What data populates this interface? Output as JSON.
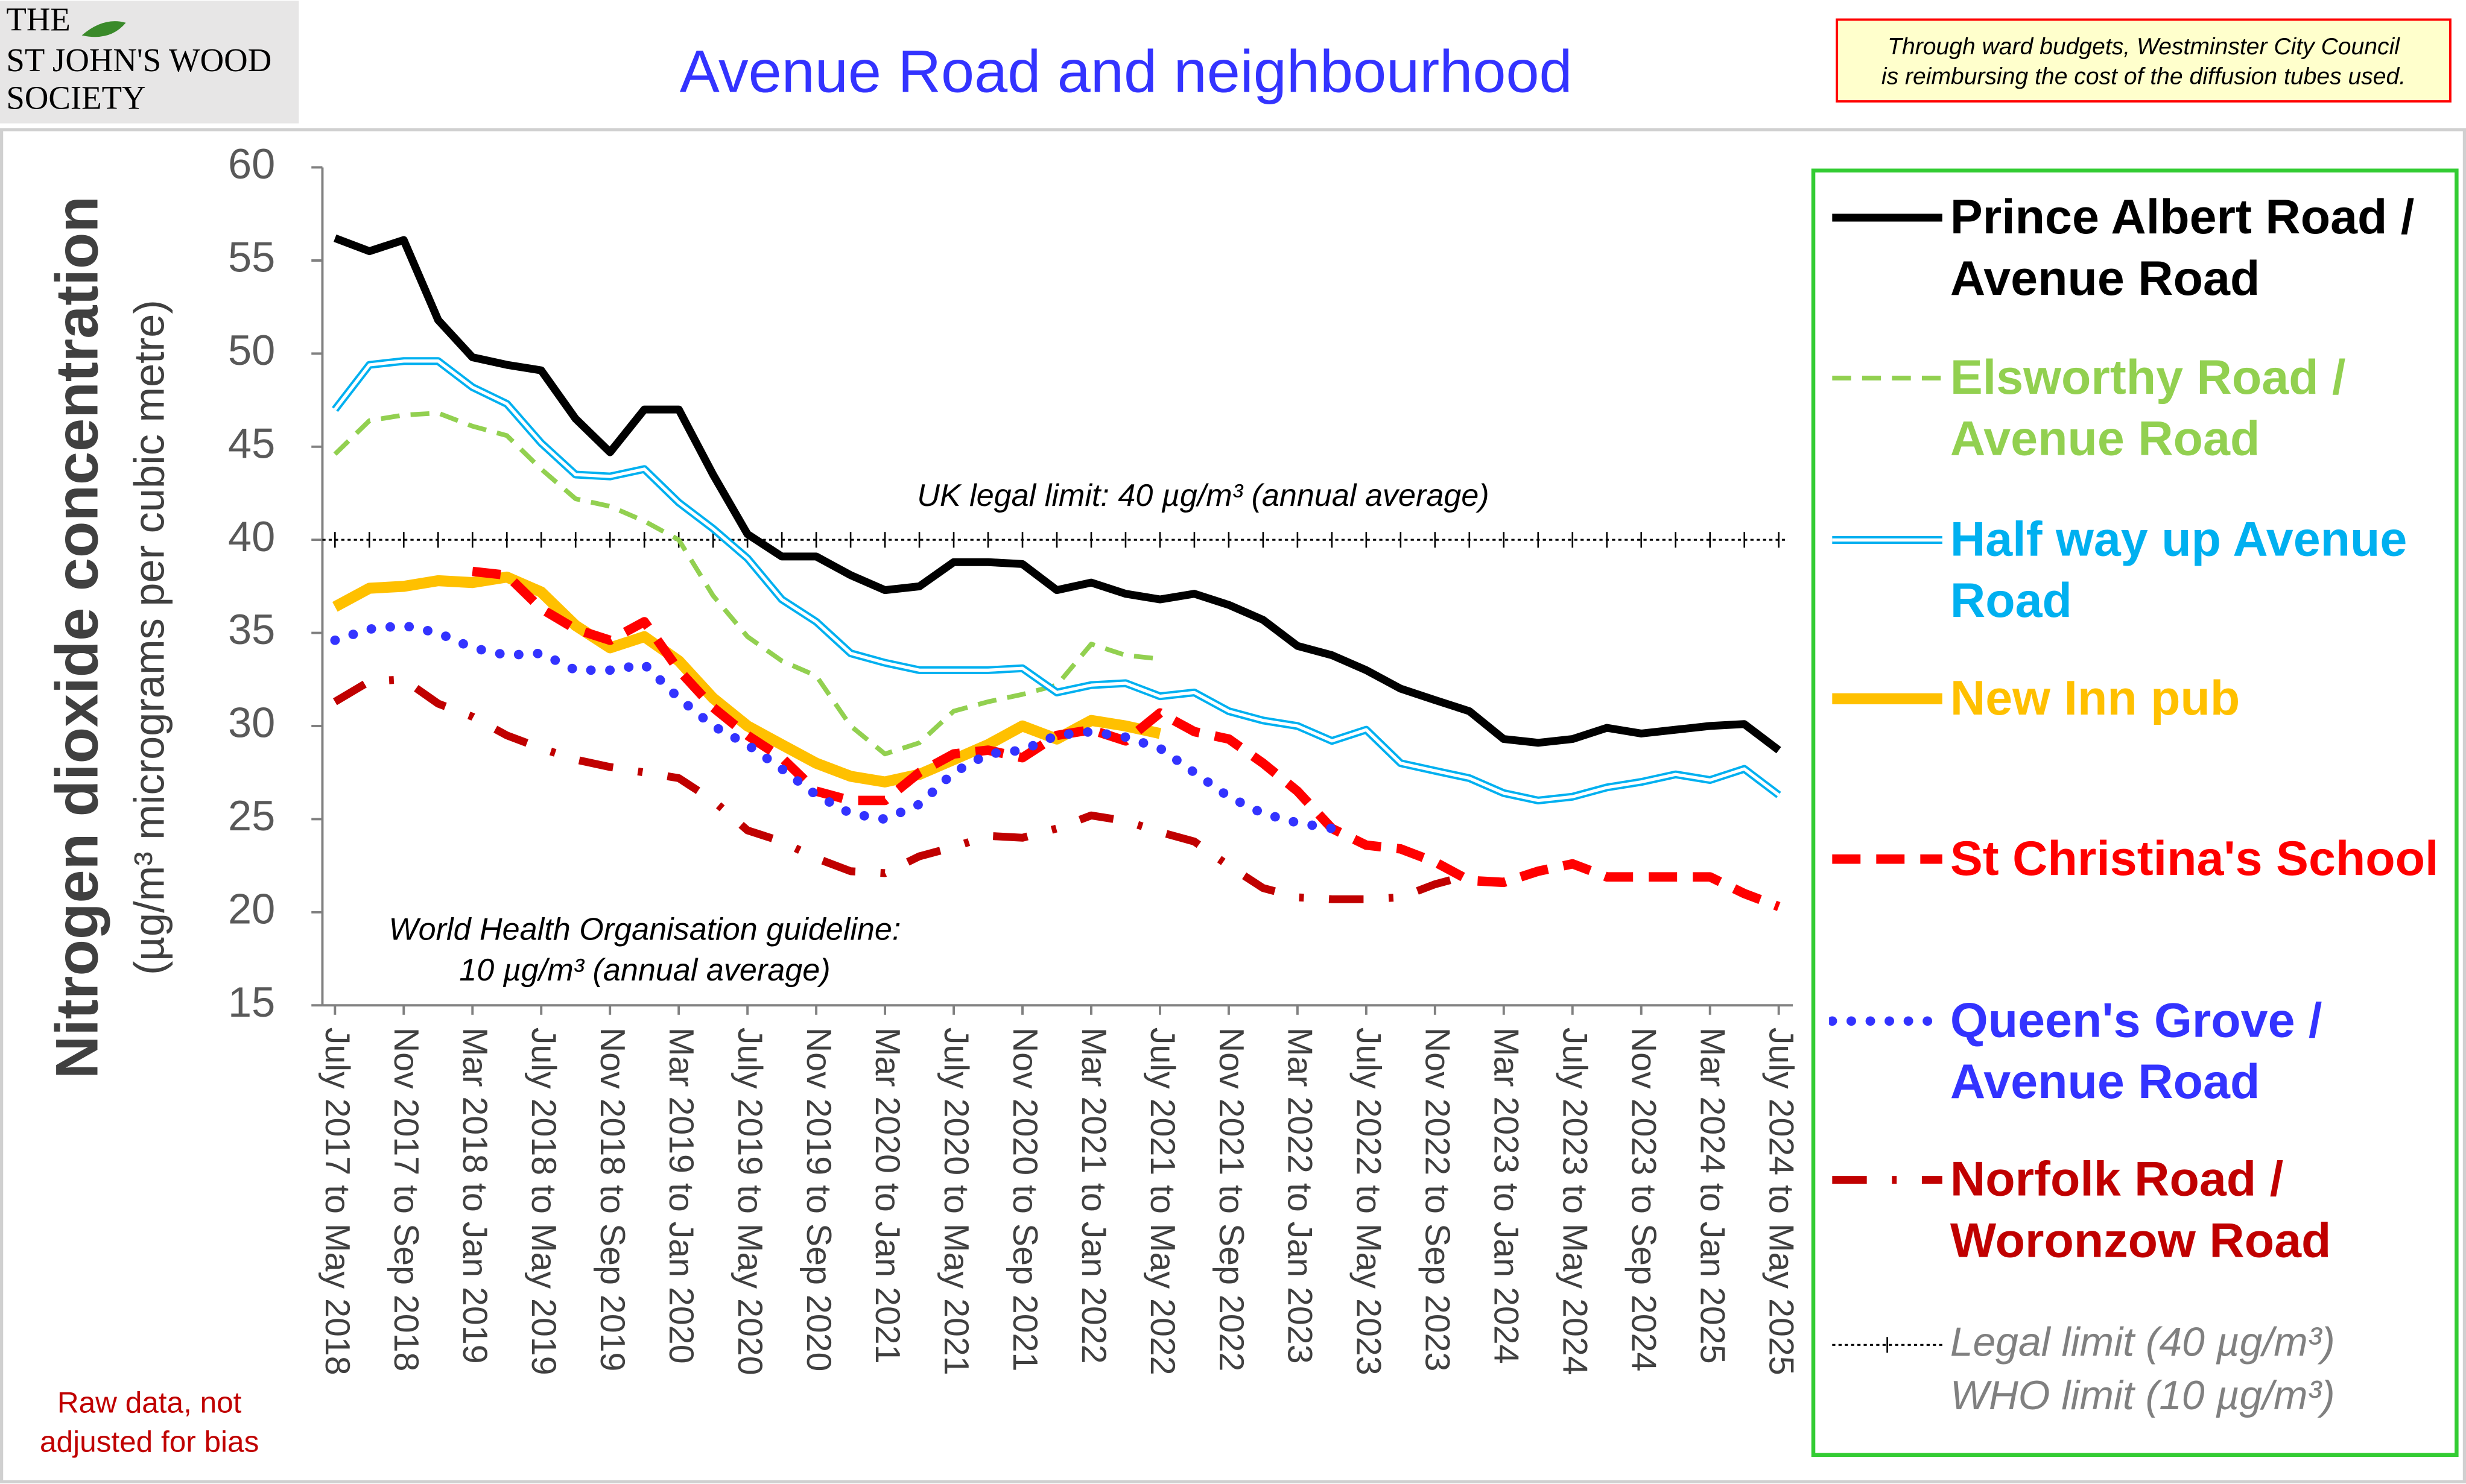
{
  "header": {
    "logo": [
      "THE",
      "ST JOHN'S WOOD",
      "SOCIETY"
    ],
    "note": [
      "Through ward budgets, Westminster City Council",
      "is reimbursing the cost of the diffusion tubes used."
    ]
  },
  "chart_data": {
    "type": "line",
    "title": "Avenue Road and neighbourhood",
    "yaxis_label": "Nitrogen dioxide concentration",
    "yaxis_sublabel": "(µg/m³ micrograms per cubic metre)",
    "categories": [
      "July 2017 to May 2018",
      null,
      "Nov 2017 to Sep 2018",
      null,
      "Mar 2018 to Jan 2019",
      null,
      "July 2018 to May 2019",
      null,
      "Nov 2018 to Sep 2019",
      null,
      "Mar 2019 to Jan 2020",
      null,
      "July 2019 to May 2020",
      null,
      "Nov 2019 to Sep 2020",
      null,
      "Mar 2020 to Jan 2021",
      null,
      "July 2020 to May 2021",
      null,
      "Nov 2020 to Sep 2021",
      null,
      "Mar 2021 to Jan 2022",
      null,
      "July 2021 to May 2022",
      null,
      "Nov 2021 to Sep 2022",
      null,
      "Mar 2022 to Jan 2023",
      null,
      "July 2022 to May 2023",
      null,
      "Nov 2022 to Sep 2023",
      null,
      "Mar 2023 to Jan 2024",
      null,
      "July 2023 to May 2024",
      null,
      "Nov 2023 to Sep 2024",
      null,
      "Mar 2024 to Jan 2025",
      null,
      "July 2024 to May 2025"
    ],
    "series": [
      {
        "name": "Prince Albert Road / Avenue Road",
        "color": "#000000",
        "line_style": "solid",
        "values": [
          56.2,
          55.5,
          56.1,
          51.8,
          49.8,
          49.4,
          49.1,
          46.5,
          44.7,
          47,
          47,
          43.5,
          40.3,
          39.1,
          39.1,
          38.1,
          37.3,
          37.5,
          38.8,
          38.8,
          38.7,
          37.3,
          37.7,
          37.1,
          36.8,
          37.1,
          36.5,
          35.7,
          34.3,
          33.8,
          33,
          32,
          31.4,
          30.8,
          29.3,
          29.1,
          29.3,
          29.9,
          29.6,
          29.8,
          30,
          30.1,
          28.7
        ]
      },
      {
        "name": "Elsworthy Road / Avenue Road",
        "color": "#92d050",
        "line_style": "dashed",
        "values": [
          44.6,
          46.4,
          46.7,
          46.8,
          46.1,
          45.6,
          43.8,
          42.2,
          41.8,
          41,
          40,
          37,
          34.8,
          33.5,
          32.7,
          30,
          28.5,
          29.1,
          30.8,
          31.3,
          31.7,
          32.2,
          34.4,
          33.8,
          33.6,
          null,
          null,
          null,
          null,
          null,
          null,
          null,
          null,
          null,
          null,
          null,
          null,
          null,
          null,
          null,
          null,
          null,
          null
        ]
      },
      {
        "name": "Half way up Avenue Road",
        "color": "#00b0f0",
        "line_style": "double",
        "values": [
          47,
          49.4,
          49.6,
          49.6,
          48.2,
          47.3,
          45.2,
          43.5,
          43.4,
          43.8,
          42,
          40.6,
          39,
          36.8,
          35.6,
          33.9,
          33.4,
          33,
          33,
          33,
          33.1,
          31.8,
          32.2,
          32.3,
          31.6,
          31.8,
          30.8,
          30.3,
          30,
          29.2,
          29.8,
          28,
          27.6,
          27.2,
          26.4,
          26,
          26.2,
          26.7,
          27,
          27.4,
          27.1,
          27.7,
          26.3
        ]
      },
      {
        "name": "New Inn pub",
        "color": "#ffc000",
        "line_style": "thick",
        "values": [
          36.4,
          37.4,
          37.5,
          37.8,
          37.7,
          38,
          37.2,
          35.4,
          34.2,
          34.8,
          33.5,
          31.5,
          30,
          29,
          28,
          27.3,
          27,
          27.4,
          28.2,
          29,
          30,
          29.3,
          30.3,
          30,
          29.6,
          null,
          null,
          null,
          null,
          null,
          null,
          null,
          null,
          null,
          null,
          null,
          null,
          null,
          null,
          null,
          null,
          null,
          null
        ]
      },
      {
        "name": "St Christina's School",
        "color": "#ff0000",
        "line_style": "dashed-thick",
        "values": [
          null,
          null,
          null,
          null,
          38.3,
          38.1,
          36.3,
          35.2,
          34.6,
          35.6,
          33,
          31,
          29.5,
          28.3,
          26.5,
          26,
          26,
          27.5,
          28.5,
          28.7,
          28.3,
          29.5,
          29.8,
          29.2,
          30.7,
          29.7,
          29.3,
          28,
          26.5,
          24.5,
          23.6,
          23.4,
          22.7,
          21.7,
          21.6,
          22.2,
          22.6,
          21.9,
          21.9,
          21.9,
          21.9,
          21,
          20.3
        ]
      },
      {
        "name": "Queen's Grove / Avenue Road",
        "color": "#3333ff",
        "line_style": "dotted",
        "values": [
          34.6,
          35.2,
          35.4,
          35,
          34.2,
          33.8,
          33.9,
          33,
          33,
          33.3,
          31.5,
          30,
          29,
          27.7,
          26.3,
          25.3,
          25,
          25.8,
          27.5,
          28.5,
          28.7,
          29.5,
          29.7,
          29.4,
          28.8,
          27.5,
          26.2,
          25.3,
          24.8,
          24.5,
          null,
          null,
          null,
          null,
          null,
          null,
          null,
          null,
          null,
          null,
          null,
          null,
          null
        ]
      },
      {
        "name": "Norfolk Road / Woronzow Road",
        "color": "#c00000",
        "line_style": "dash-dot",
        "values": [
          31.3,
          32.4,
          32.5,
          31.2,
          30.5,
          29.5,
          28.8,
          28.2,
          27.8,
          27.5,
          27.2,
          26,
          24.4,
          23.8,
          22.9,
          22.2,
          22.1,
          23,
          23.5,
          24.1,
          24,
          24.5,
          25.2,
          24.9,
          24.3,
          23.8,
          22.5,
          21.3,
          20.8,
          20.7,
          20.7,
          20.8,
          21.5,
          22,
          null,
          null,
          null,
          null,
          null,
          null,
          null,
          null,
          null
        ]
      }
    ],
    "ylim": [
      15,
      60
    ],
    "yticks": [
      15,
      20,
      25,
      30,
      35,
      40,
      45,
      50,
      55,
      60
    ],
    "grid": false,
    "legend": "right",
    "reference_line": {
      "value": 40,
      "label": "UK legal limit:  40 µg/m³ (annual average)"
    },
    "annotations": [
      "World Health Organisation guideline:",
      "10 µg/m³ (annual average)"
    ],
    "legend_notes": [
      "Legal limit  (40 µg/m³)",
      "WHO limit  (10 µg/m³)"
    ],
    "footnote": [
      "Raw data, not",
      "adjusted for bias"
    ]
  }
}
